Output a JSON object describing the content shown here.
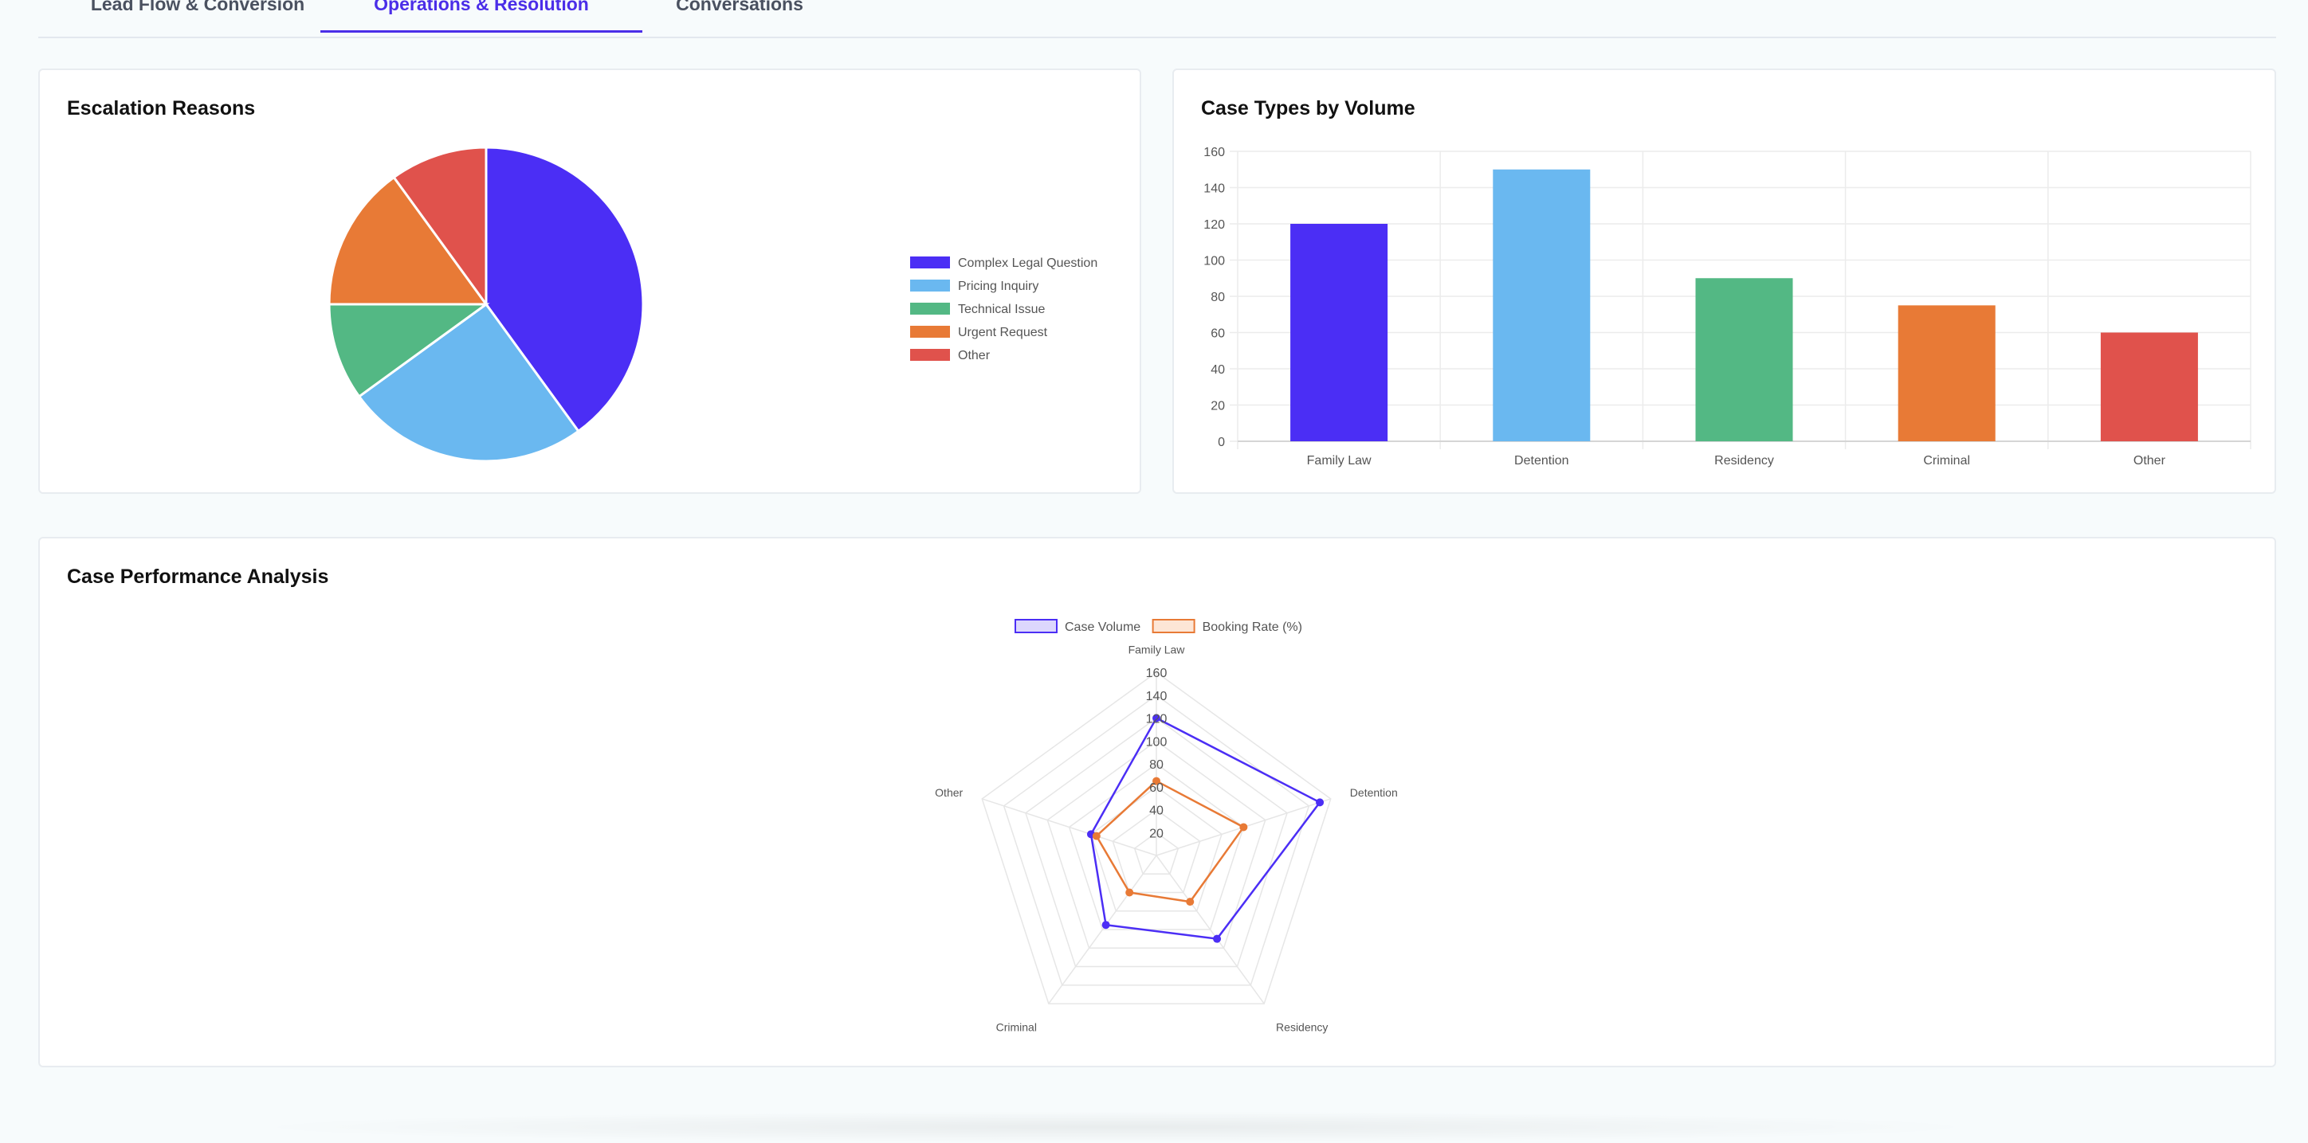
{
  "tabs": [
    {
      "label": "Lead Flow & Conversion",
      "active": false
    },
    {
      "label": "Operations & Resolution",
      "active": true
    },
    {
      "label": "Conversations",
      "active": false
    }
  ],
  "colors": {
    "purple": "#4b2ef5",
    "blue": "#6ab8f0",
    "green": "#53b884",
    "orange": "#e87a36",
    "red": "#e0524c"
  },
  "escalation": {
    "title": "Escalation Reasons",
    "chart_data": {
      "type": "pie",
      "labels": [
        "Complex Legal Question",
        "Pricing Inquiry",
        "Technical Issue",
        "Urgent Request",
        "Other"
      ],
      "values": [
        40,
        25,
        10,
        15,
        10
      ],
      "colors": [
        "#4b2ef5",
        "#6ab8f0",
        "#53b884",
        "#e87a36",
        "#e0524c"
      ],
      "legend_position": "right"
    }
  },
  "case_types": {
    "title": "Case Types by Volume",
    "chart_data": {
      "type": "bar",
      "categories": [
        "Family Law",
        "Detention",
        "Residency",
        "Criminal",
        "Other"
      ],
      "values": [
        120,
        150,
        90,
        75,
        60
      ],
      "colors": [
        "#4b2ef5",
        "#6ab8f0",
        "#53b884",
        "#e87a36",
        "#e0524c"
      ],
      "ylim": [
        0,
        160
      ],
      "yticks": [
        0,
        20,
        40,
        60,
        80,
        100,
        120,
        140,
        160
      ],
      "grid": true
    }
  },
  "performance": {
    "title": "Case Performance Analysis",
    "chart_data": {
      "type": "radar",
      "categories": [
        "Family Law",
        "Detention",
        "Residency",
        "Criminal",
        "Other"
      ],
      "series": [
        {
          "name": "Case Volume",
          "values": [
            120,
            150,
            90,
            75,
            60
          ],
          "color": "#4b2ef5",
          "fill": "#dcd7fd"
        },
        {
          "name": "Booking Rate (%)",
          "values": [
            65,
            80,
            50,
            40,
            55
          ],
          "color": "#e87a36",
          "fill": "#fde6d6"
        }
      ],
      "rlim": [
        0,
        160
      ],
      "ticks": [
        20,
        40,
        60,
        80,
        100,
        120,
        140,
        160
      ],
      "legend_position": "top"
    }
  }
}
